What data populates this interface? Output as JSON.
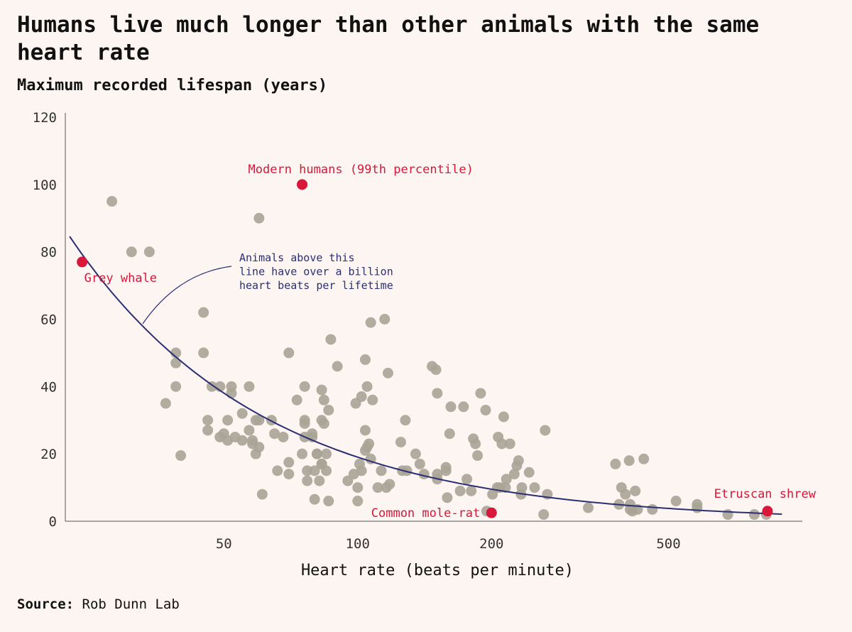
{
  "page": {
    "title": "Humans live much longer than other animals with the same heart rate",
    "source_label": "Source:",
    "source_text": "Rob Dunn Lab"
  },
  "colors": {
    "background": "#fdf5f1",
    "points": "#a8a496",
    "highlight": "#d9173a",
    "curve": "#2b2f73"
  },
  "chart_data": {
    "type": "scatter",
    "title": "Humans live much longer than other animals with the same heart rate",
    "ylabel": "Maximum recorded lifespan (years)",
    "xlabel": "Heart rate (beats per minute)",
    "x_scale": "log",
    "xlim": [
      22,
      1000
    ],
    "ylim": [
      0,
      120
    ],
    "x_ticks": [
      50,
      100,
      200,
      500
    ],
    "y_ticks": [
      0,
      20,
      40,
      60,
      80,
      100,
      120
    ],
    "grid": false,
    "curve_note": [
      "Animals above this",
      "line have over a billion",
      "heart beats per lifetime"
    ],
    "curve": {
      "description": "one billion heart beats per lifetime",
      "x_range": [
        22.5,
        900
      ]
    },
    "highlights": [
      {
        "label": "Modern humans (99th percentile)",
        "x": 75,
        "y": 100
      },
      {
        "label": "Grey whale",
        "x": 24,
        "y": 77
      },
      {
        "label": "Common mole-rat",
        "x": 200,
        "y": 2.5
      },
      {
        "label": "Etruscan shrew",
        "x": 835,
        "y": 3
      }
    ],
    "points": [
      [
        28,
        95
      ],
      [
        31,
        80
      ],
      [
        34,
        80
      ],
      [
        60,
        90
      ],
      [
        37,
        35
      ],
      [
        39,
        50
      ],
      [
        39,
        47
      ],
      [
        39,
        40
      ],
      [
        40,
        19.5
      ],
      [
        45,
        62
      ],
      [
        45,
        50
      ],
      [
        46,
        27
      ],
      [
        46,
        30
      ],
      [
        47,
        40
      ],
      [
        49,
        40
      ],
      [
        49,
        25
      ],
      [
        50,
        26
      ],
      [
        51,
        24
      ],
      [
        51,
        30
      ],
      [
        52,
        38
      ],
      [
        52,
        40
      ],
      [
        53,
        25
      ],
      [
        55,
        24
      ],
      [
        55,
        32
      ],
      [
        57,
        40
      ],
      [
        57,
        27
      ],
      [
        58,
        24
      ],
      [
        58,
        23
      ],
      [
        59,
        30
      ],
      [
        59,
        20
      ],
      [
        60,
        30
      ],
      [
        60,
        22
      ],
      [
        61,
        8
      ],
      [
        64,
        30
      ],
      [
        65,
        26
      ],
      [
        66,
        15
      ],
      [
        68,
        25
      ],
      [
        70,
        14
      ],
      [
        70,
        17.5
      ],
      [
        70,
        50
      ],
      [
        73,
        36
      ],
      [
        75,
        20
      ],
      [
        76,
        30
      ],
      [
        76,
        25
      ],
      [
        76,
        29
      ],
      [
        76,
        40
      ],
      [
        77,
        15
      ],
      [
        77,
        12
      ],
      [
        79,
        26
      ],
      [
        79,
        25
      ],
      [
        80,
        15
      ],
      [
        80,
        6.5
      ],
      [
        81,
        20
      ],
      [
        81,
        20
      ],
      [
        82,
        12
      ],
      [
        83,
        39
      ],
      [
        83,
        30
      ],
      [
        83,
        17
      ],
      [
        83,
        17
      ],
      [
        84,
        36
      ],
      [
        84,
        29
      ],
      [
        85,
        20
      ],
      [
        85,
        15
      ],
      [
        86,
        33
      ],
      [
        86,
        6
      ],
      [
        87,
        54
      ],
      [
        90,
        46
      ],
      [
        95,
        12
      ],
      [
        98,
        14
      ],
      [
        99,
        35
      ],
      [
        100,
        10
      ],
      [
        100,
        6
      ],
      [
        101,
        17
      ],
      [
        102,
        37
      ],
      [
        102,
        15
      ],
      [
        104,
        21
      ],
      [
        104,
        48
      ],
      [
        104,
        27
      ],
      [
        105,
        22
      ],
      [
        105,
        40
      ],
      [
        106,
        23
      ],
      [
        107,
        59
      ],
      [
        107,
        18.5
      ],
      [
        108,
        36
      ],
      [
        111,
        10
      ],
      [
        113,
        15
      ],
      [
        115,
        60
      ],
      [
        116,
        10
      ],
      [
        117,
        44
      ],
      [
        118,
        11
      ],
      [
        125,
        23.5
      ],
      [
        126,
        15
      ],
      [
        128,
        30
      ],
      [
        129,
        15
      ],
      [
        135,
        20
      ],
      [
        138,
        17
      ],
      [
        141,
        14
      ],
      [
        147,
        46
      ],
      [
        150,
        45
      ],
      [
        151,
        38
      ],
      [
        151,
        14
      ],
      [
        151,
        12.5
      ],
      [
        158,
        16
      ],
      [
        158,
        15
      ],
      [
        159,
        7
      ],
      [
        161,
        26
      ],
      [
        162,
        34
      ],
      [
        170,
        9
      ],
      [
        173,
        34
      ],
      [
        176,
        12.5
      ],
      [
        180,
        9
      ],
      [
        182,
        24.5
      ],
      [
        184,
        23
      ],
      [
        186,
        19.5
      ],
      [
        189,
        38
      ],
      [
        194,
        33
      ],
      [
        195,
        3
      ],
      [
        201,
        8
      ],
      [
        206,
        10
      ],
      [
        207,
        25
      ],
      [
        209,
        10
      ],
      [
        211,
        23
      ],
      [
        213,
        31
      ],
      [
        215,
        10
      ],
      [
        216,
        12.5
      ],
      [
        220,
        23
      ],
      [
        225,
        14
      ],
      [
        228,
        16.5
      ],
      [
        230,
        18
      ],
      [
        233,
        8
      ],
      [
        234,
        10
      ],
      [
        243,
        14.5
      ],
      [
        250,
        10
      ],
      [
        262,
        2
      ],
      [
        264,
        27
      ],
      [
        267,
        8
      ],
      [
        330,
        4
      ],
      [
        380,
        17
      ],
      [
        387,
        5
      ],
      [
        392,
        10
      ],
      [
        400,
        8
      ],
      [
        408,
        18
      ],
      [
        410,
        5
      ],
      [
        410,
        3.5
      ],
      [
        415,
        3
      ],
      [
        421,
        9
      ],
      [
        426,
        3.5
      ],
      [
        440,
        18.5
      ],
      [
        460,
        3.5
      ],
      [
        520,
        6
      ],
      [
        580,
        4
      ],
      [
        580,
        5
      ],
      [
        680,
        2
      ],
      [
        780,
        2
      ],
      [
        830,
        2
      ]
    ]
  }
}
